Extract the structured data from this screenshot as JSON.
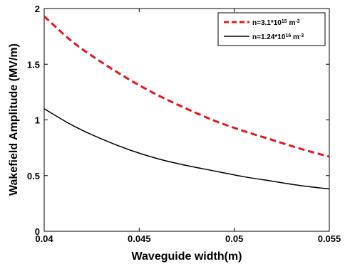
{
  "chart_data": {
    "type": "line",
    "xlabel": "Waveguide width(m)",
    "ylabel": "Wakefield Amplitude (MV/m)",
    "xlim": [
      0.04,
      0.055
    ],
    "ylim": [
      0,
      2
    ],
    "xticks": [
      0.04,
      0.045,
      0.05,
      0.055
    ],
    "xtick_labels": [
      "0.04",
      "0.045",
      "0.05",
      "0.055"
    ],
    "yticks": [
      0,
      0.5,
      1,
      1.5,
      2
    ],
    "ytick_labels": [
      "0",
      "0.5",
      "1",
      "1.5",
      "2"
    ],
    "grid": false,
    "legend_position": "top-right",
    "series": [
      {
        "name": "n=3.1*10^15 m^-3",
        "legend": {
          "base": "n=3.1*10",
          "exp": "15",
          "unit": " m",
          "unit_exp": "-3"
        },
        "color": "#e8141b",
        "style": "dashed",
        "x": [
          0.04,
          0.0415,
          0.043,
          0.0445,
          0.046,
          0.0475,
          0.049,
          0.0505,
          0.052,
          0.0535,
          0.055
        ],
        "y": [
          1.93,
          1.7,
          1.52,
          1.36,
          1.22,
          1.1,
          0.99,
          0.9,
          0.82,
          0.74,
          0.67
        ]
      },
      {
        "name": "n=1.24*10^16 m^-3",
        "legend": {
          "base": "n=1.24*10",
          "exp": "16",
          "unit": " m",
          "unit_exp": "-3"
        },
        "color": "#000000",
        "style": "solid",
        "x": [
          0.04,
          0.0415,
          0.043,
          0.0445,
          0.046,
          0.0475,
          0.049,
          0.0505,
          0.052,
          0.0535,
          0.055
        ],
        "y": [
          1.1,
          0.95,
          0.83,
          0.73,
          0.65,
          0.59,
          0.54,
          0.49,
          0.45,
          0.41,
          0.38
        ]
      }
    ]
  }
}
